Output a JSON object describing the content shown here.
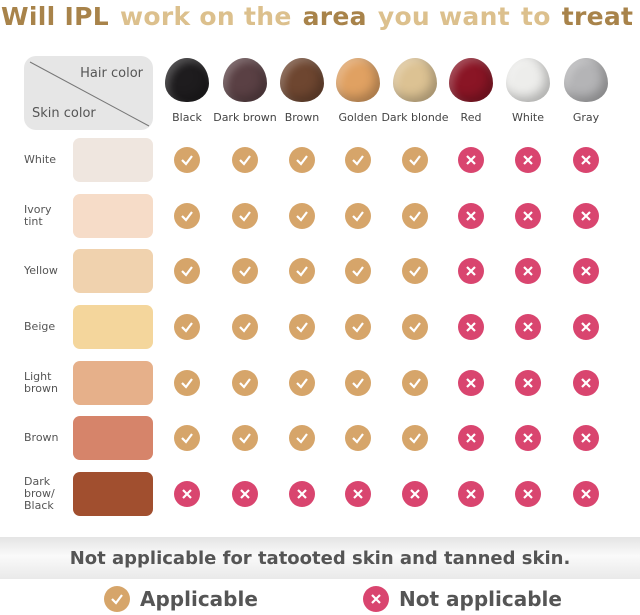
{
  "title": {
    "parts": [
      {
        "text": "Will IPL",
        "tone": "dark"
      },
      {
        "text": "work on the",
        "tone": "light"
      },
      {
        "text": "area",
        "tone": "dark"
      },
      {
        "text": "you want",
        "tone": "light"
      },
      {
        "text": "to",
        "tone": "light"
      },
      {
        "text": "treat ?",
        "tone": "dark"
      }
    ]
  },
  "header": {
    "hair_label": "Hair color",
    "skin_label": "Skin color"
  },
  "hair_colors": [
    {
      "name": "Black",
      "color": "#1e1c1e"
    },
    {
      "name": "Dark brown",
      "color": "#5a4044"
    },
    {
      "name": "Brown",
      "color": "#6e4630"
    },
    {
      "name": "Golden",
      "color": "#e0a162"
    },
    {
      "name": "Dark blonde",
      "color": "#dcc293"
    },
    {
      "name": "Red",
      "color": "#8a1525"
    },
    {
      "name": "White",
      "color": "#ededeb"
    },
    {
      "name": "Gray",
      "color": "#b4b4b6"
    }
  ],
  "skin_colors": [
    {
      "name": "White",
      "color": "#efe6df",
      "applicable": [
        true,
        true,
        true,
        true,
        true,
        false,
        false,
        false
      ]
    },
    {
      "name": "Ivory\ntint",
      "color": "#f6dcc8",
      "applicable": [
        true,
        true,
        true,
        true,
        true,
        false,
        false,
        false
      ]
    },
    {
      "name": "Yellow",
      "color": "#f0d2ae",
      "applicable": [
        true,
        true,
        true,
        true,
        true,
        false,
        false,
        false
      ]
    },
    {
      "name": "Beige",
      "color": "#f4d69c",
      "applicable": [
        true,
        true,
        true,
        true,
        true,
        false,
        false,
        false
      ]
    },
    {
      "name": "Light\nbrown",
      "color": "#e6b08a",
      "applicable": [
        true,
        true,
        true,
        true,
        true,
        false,
        false,
        false
      ]
    },
    {
      "name": "Brown",
      "color": "#d6846a",
      "applicable": [
        true,
        true,
        true,
        true,
        true,
        false,
        false,
        false
      ]
    },
    {
      "name": "Dark\nbrow/\nBlack",
      "color": "#a14f2f",
      "applicable": [
        false,
        false,
        false,
        false,
        false,
        false,
        false,
        false
      ]
    }
  ],
  "note": "Not applicable for tatooted skin and tanned skin.",
  "legend": {
    "applicable": "Applicable",
    "not_applicable": "Not applicable"
  },
  "colors": {
    "applicable": "#d6a56a",
    "not_applicable": "#d9456f"
  }
}
